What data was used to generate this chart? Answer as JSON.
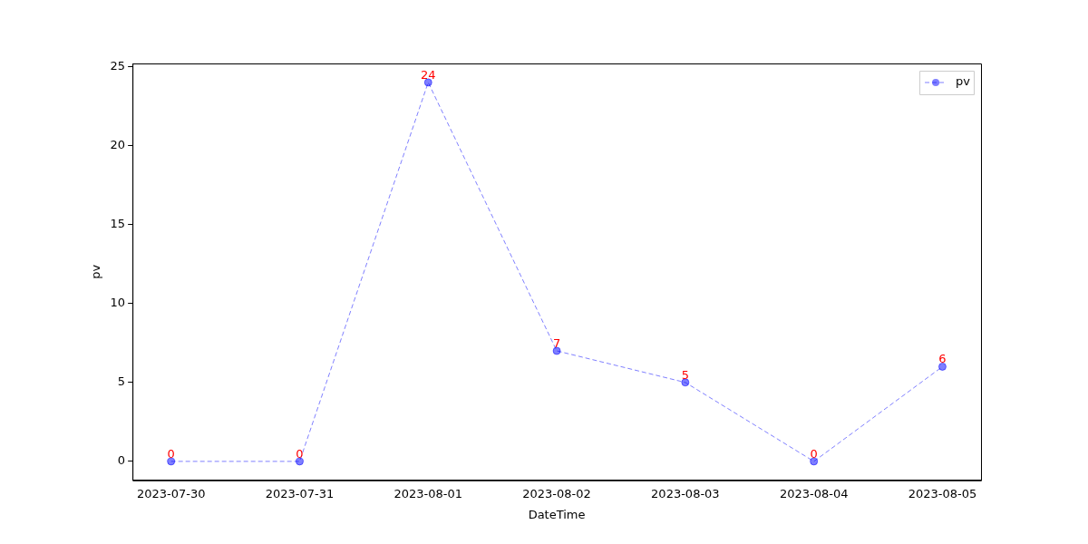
{
  "chart_data": {
    "type": "line",
    "x": [
      "2023-07-30",
      "2023-07-31",
      "2023-08-01",
      "2023-08-02",
      "2023-08-03",
      "2023-08-04",
      "2023-08-05"
    ],
    "series": [
      {
        "name": "pv",
        "color": "#0000ff",
        "values": [
          0,
          0,
          24,
          7,
          5,
          0,
          6
        ]
      }
    ],
    "xlabel": "DateTime",
    "ylabel": "pv",
    "xlim": [
      "2023-07-29T16:48",
      "2023-08-05T07:12"
    ],
    "xticks": [
      "2023-07-30",
      "2023-07-31",
      "2023-08-01",
      "2023-08-02",
      "2023-08-03",
      "2023-08-04",
      "2023-08-05"
    ],
    "ylim": [
      -1.2,
      25.2
    ],
    "yticks": [
      0,
      5,
      10,
      15,
      20,
      25
    ],
    "marker": "circle",
    "line_style": "dashed",
    "data_labels": true,
    "legend": "top right",
    "grid": false
  }
}
